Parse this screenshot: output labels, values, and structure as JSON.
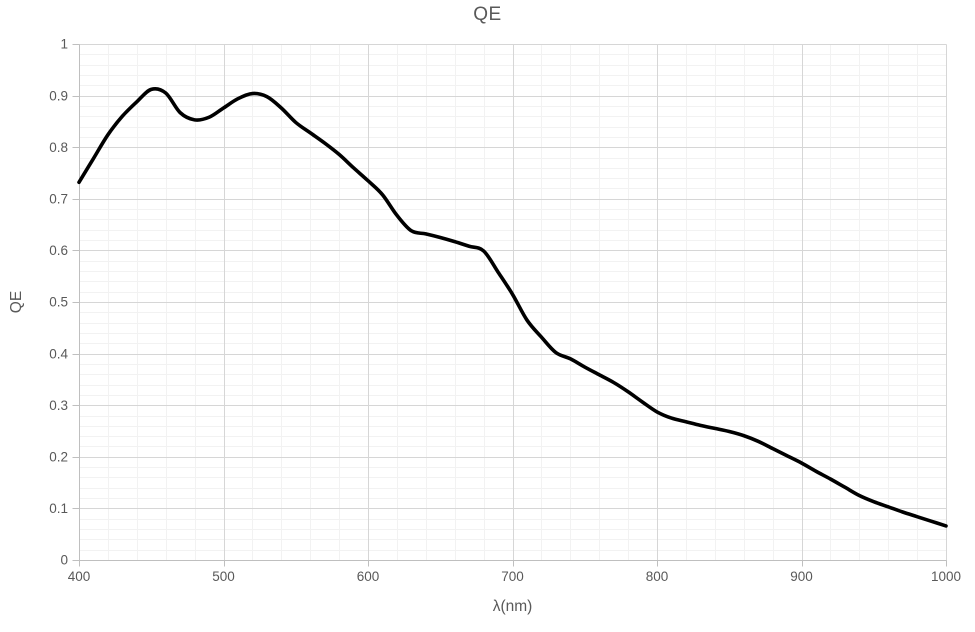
{
  "chart": {
    "title": "QE",
    "x_axis_title": "λ(nm)",
    "y_axis_title": "QE"
  },
  "chart_data": {
    "type": "line",
    "title": "QE",
    "xlabel": "λ(nm)",
    "ylabel": "QE",
    "xlim": [
      400,
      1000
    ],
    "ylim": [
      0,
      1
    ],
    "x_ticks": [
      {
        "v": 400,
        "label": "400"
      },
      {
        "v": 500,
        "label": "500"
      },
      {
        "v": 600,
        "label": "600"
      },
      {
        "v": 700,
        "label": "700"
      },
      {
        "v": 800,
        "label": "800"
      },
      {
        "v": 900,
        "label": "900"
      },
      {
        "v": 1000,
        "label": "1000"
      }
    ],
    "y_ticks": [
      {
        "v": 0,
        "label": "0"
      },
      {
        "v": 0.1,
        "label": "0.1"
      },
      {
        "v": 0.2,
        "label": "0.2"
      },
      {
        "v": 0.3,
        "label": "0.3"
      },
      {
        "v": 0.4,
        "label": "0.4"
      },
      {
        "v": 0.5,
        "label": "0.5"
      },
      {
        "v": 0.6,
        "label": "0.6"
      },
      {
        "v": 0.7,
        "label": "0.7"
      },
      {
        "v": 0.8,
        "label": "0.8"
      },
      {
        "v": 0.9,
        "label": "0.9"
      },
      {
        "v": 1,
        "label": "1"
      }
    ],
    "x_minor_step": 20,
    "y_minor_step": 0.02,
    "grid": "major+minor",
    "legend": "none",
    "line_color": "#000000",
    "line_width": 3.6,
    "grid_major_color": "#d6d6d6",
    "grid_minor_color": "#f2f2f2",
    "axis_color": "#bfbfbf",
    "text_color": "#595959",
    "series": [
      {
        "name": "QE",
        "x": [
          400,
          410,
          420,
          430,
          440,
          450,
          460,
          470,
          480,
          490,
          500,
          510,
          520,
          530,
          540,
          550,
          560,
          570,
          580,
          590,
          600,
          610,
          620,
          630,
          640,
          650,
          660,
          670,
          680,
          690,
          700,
          710,
          720,
          730,
          740,
          750,
          760,
          770,
          780,
          790,
          800,
          810,
          820,
          830,
          840,
          850,
          860,
          870,
          880,
          890,
          900,
          910,
          920,
          930,
          940,
          950,
          960,
          970,
          980,
          990,
          1000
        ],
        "y": [
          0.732,
          0.778,
          0.824,
          0.86,
          0.888,
          0.912,
          0.905,
          0.867,
          0.853,
          0.858,
          0.876,
          0.894,
          0.904,
          0.898,
          0.876,
          0.848,
          0.828,
          0.808,
          0.786,
          0.76,
          0.735,
          0.708,
          0.668,
          0.638,
          0.632,
          0.625,
          0.617,
          0.608,
          0.599,
          0.558,
          0.515,
          0.465,
          0.432,
          0.402,
          0.39,
          0.374,
          0.359,
          0.344,
          0.326,
          0.306,
          0.287,
          0.275,
          0.268,
          0.261,
          0.255,
          0.249,
          0.241,
          0.23,
          0.216,
          0.202,
          0.188,
          0.172,
          0.157,
          0.141,
          0.125,
          0.113,
          0.103,
          0.093,
          0.084,
          0.075,
          0.066
        ]
      }
    ]
  }
}
